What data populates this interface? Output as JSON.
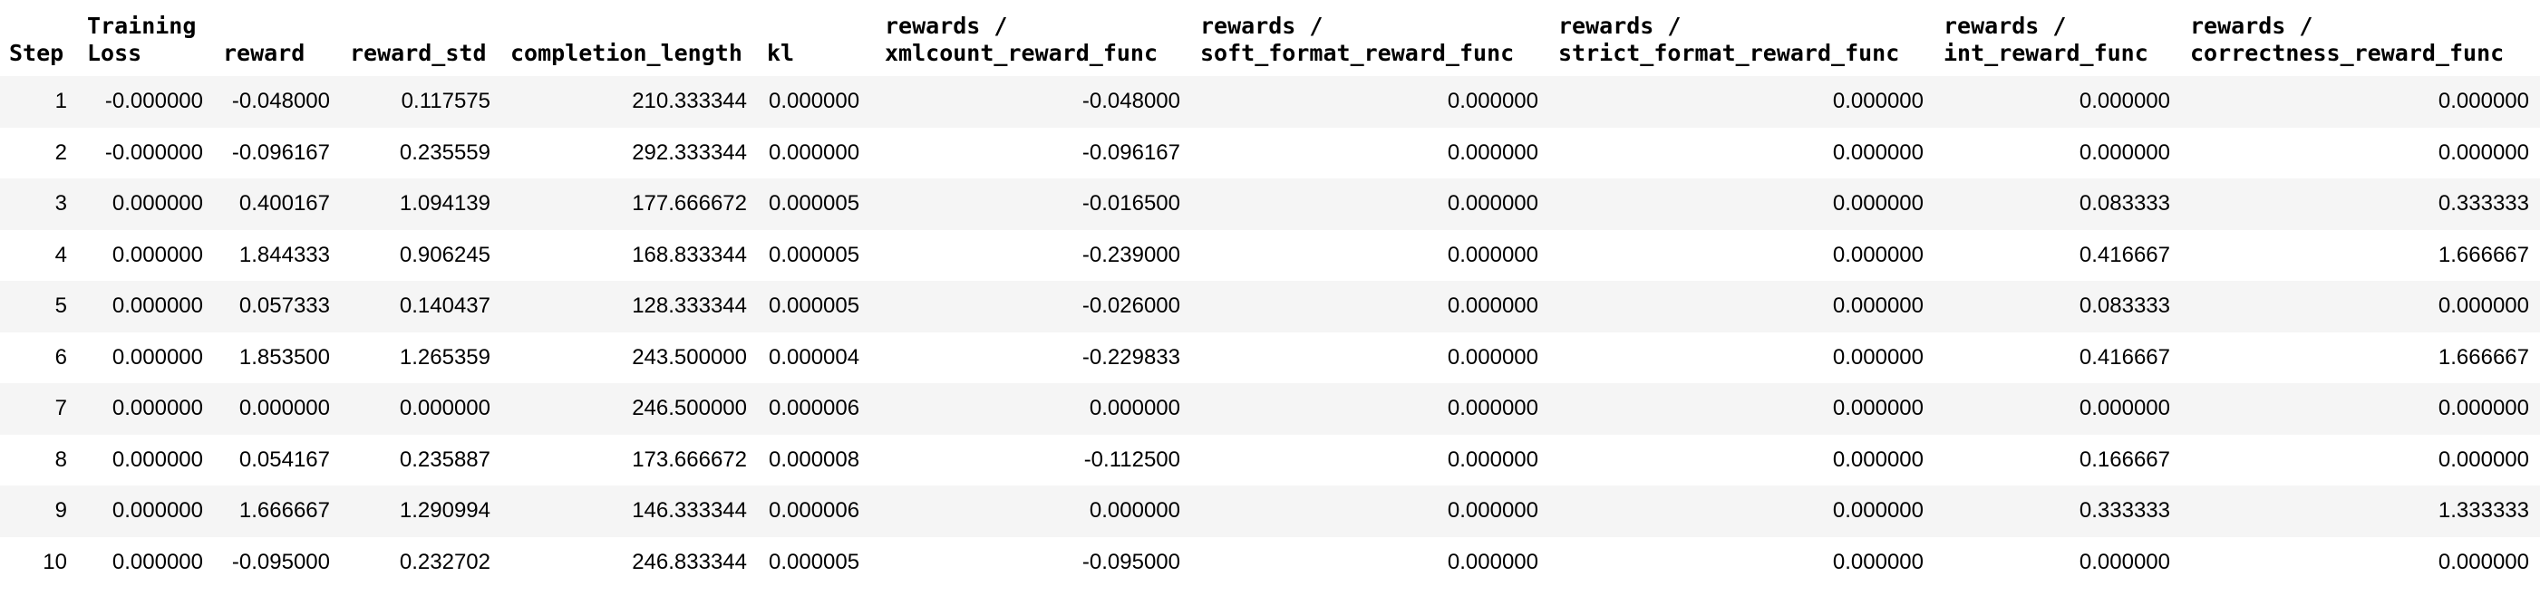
{
  "table": {
    "columns": [
      {
        "label": "Step",
        "align": "right"
      },
      {
        "label": "Training\nLoss",
        "align": "right"
      },
      {
        "label": "reward",
        "align": "right"
      },
      {
        "label": "reward_std",
        "align": "right"
      },
      {
        "label": "completion_length",
        "align": "right"
      },
      {
        "label": "kl",
        "align": "left"
      },
      {
        "label": "rewards /\nxmlcount_reward_func",
        "align": "right"
      },
      {
        "label": "rewards /\nsoft_format_reward_func",
        "align": "right"
      },
      {
        "label": "rewards /\nstrict_format_reward_func",
        "align": "right"
      },
      {
        "label": "rewards /\nint_reward_func",
        "align": "right"
      },
      {
        "label": "rewards /\ncorrectness_reward_func",
        "align": "right"
      }
    ],
    "rows": [
      [
        "1",
        "-0.000000",
        "-0.048000",
        "0.117575",
        "210.333344",
        "0.000000",
        "-0.048000",
        "0.000000",
        "0.000000",
        "0.000000",
        "0.000000"
      ],
      [
        "2",
        "-0.000000",
        "-0.096167",
        "0.235559",
        "292.333344",
        "0.000000",
        "-0.096167",
        "0.000000",
        "0.000000",
        "0.000000",
        "0.000000"
      ],
      [
        "3",
        "0.000000",
        "0.400167",
        "1.094139",
        "177.666672",
        "0.000005",
        "-0.016500",
        "0.000000",
        "0.000000",
        "0.083333",
        "0.333333"
      ],
      [
        "4",
        "0.000000",
        "1.844333",
        "0.906245",
        "168.833344",
        "0.000005",
        "-0.239000",
        "0.000000",
        "0.000000",
        "0.416667",
        "1.666667"
      ],
      [
        "5",
        "0.000000",
        "0.057333",
        "0.140437",
        "128.333344",
        "0.000005",
        "-0.026000",
        "0.000000",
        "0.000000",
        "0.083333",
        "0.000000"
      ],
      [
        "6",
        "0.000000",
        "1.853500",
        "1.265359",
        "243.500000",
        "0.000004",
        "-0.229833",
        "0.000000",
        "0.000000",
        "0.416667",
        "1.666667"
      ],
      [
        "7",
        "0.000000",
        "0.000000",
        "0.000000",
        "246.500000",
        "0.000006",
        "0.000000",
        "0.000000",
        "0.000000",
        "0.000000",
        "0.000000"
      ],
      [
        "8",
        "0.000000",
        "0.054167",
        "0.235887",
        "173.666672",
        "0.000008",
        "-0.112500",
        "0.000000",
        "0.000000",
        "0.166667",
        "0.000000"
      ],
      [
        "9",
        "0.000000",
        "1.666667",
        "1.290994",
        "146.333344",
        "0.000006",
        "0.000000",
        "0.000000",
        "0.000000",
        "0.333333",
        "1.333333"
      ],
      [
        "10",
        "0.000000",
        "-0.095000",
        "0.232702",
        "246.833344",
        "0.000005",
        "-0.095000",
        "0.000000",
        "0.000000",
        "0.000000",
        "0.000000"
      ]
    ]
  }
}
